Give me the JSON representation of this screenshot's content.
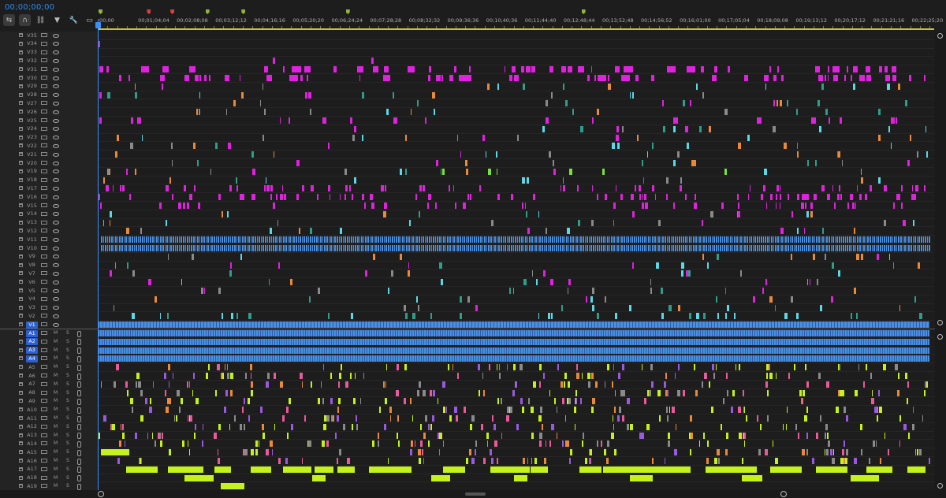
{
  "timecode": "00;00;00;00",
  "toolbar": {
    "tools": [
      {
        "name": "insert-sequence-nest-icon",
        "glyph": "⇆",
        "active": true
      },
      {
        "name": "snap-magnet-icon",
        "glyph": "∩",
        "active": true
      },
      {
        "name": "linked-selection-icon",
        "glyph": "⛓",
        "active": false
      },
      {
        "name": "add-marker-icon",
        "glyph": "▼",
        "active": false
      },
      {
        "name": "wrench-settings-icon",
        "glyph": "🔧",
        "active": false
      },
      {
        "name": "captions-icon",
        "glyph": "▭",
        "active": false
      }
    ]
  },
  "ruler": {
    "ticks": [
      "00;00",
      "00;01;04;04",
      "00;02;08;08",
      "00;03;12;12",
      "00;04;16;16",
      "00;05;20;20",
      "00;06;24;24",
      "00;07;28;28",
      "00;08;32;32",
      "00;09;36;36",
      "00;10;40;36",
      "00;11;44;40",
      "00;12;48;44",
      "00;13;52;48",
      "00;14;56;52",
      "00;16;01;00",
      "00;17;05;04",
      "00;18;09;08",
      "00;19;13;12",
      "00;20;17;12",
      "00;21;21;16",
      "00;22;25;20",
      "00"
    ],
    "markers": [
      {
        "pos": 0.0,
        "color": "#8fb53a"
      },
      {
        "pos": 0.058,
        "color": "#d94141"
      },
      {
        "pos": 0.086,
        "color": "#d94141"
      },
      {
        "pos": 0.128,
        "color": "#8fb53a"
      },
      {
        "pos": 0.171,
        "color": "#8fb53a"
      },
      {
        "pos": 0.296,
        "color": "#8fb53a"
      },
      {
        "pos": 0.578,
        "color": "#8fb53a"
      }
    ]
  },
  "video_tracks": [
    "V35",
    "V34",
    "V33",
    "V32",
    "V31",
    "V30",
    "V29",
    "V28",
    "V27",
    "V26",
    "V25",
    "V24",
    "V23",
    "V22",
    "V21",
    "V20",
    "V19",
    "V18",
    "V17",
    "V16",
    "V15",
    "V14",
    "V13",
    "V12",
    "V11",
    "V10",
    "V9",
    "V8",
    "V7",
    "V6",
    "V5",
    "V4",
    "V3",
    "V2",
    "V1"
  ],
  "audio_tracks": [
    "A1",
    "A2",
    "A3",
    "A4",
    "A5",
    "A6",
    "A7",
    "A8",
    "A9",
    "A10",
    "A11",
    "A12",
    "A13",
    "A14",
    "A15",
    "A16",
    "A17",
    "A18",
    "A19"
  ],
  "targeted_tracks": [
    "V1",
    "A1",
    "A2",
    "A3",
    "A4"
  ],
  "audio_buttons": {
    "mute": "M",
    "solo": "S"
  },
  "colors": {
    "magenta": "#e021e0",
    "cyan": "#5ad8e8",
    "teal": "#2e9e8a",
    "blue": "#4a8fe0",
    "blue_dark": "#2b5fb0",
    "lime": "#c4f21a",
    "orange": "#e88a3a",
    "pink": "#e85a9a",
    "purple": "#9a5ae0",
    "grey": "#8a8a8a",
    "green": "#7ae03a"
  }
}
